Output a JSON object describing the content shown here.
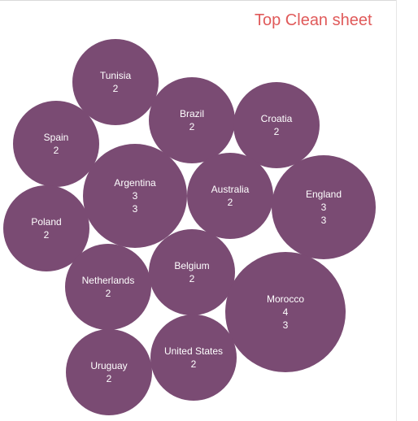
{
  "chart_data": {
    "type": "bubble",
    "title": "Top Clean sheet",
    "bubble_color": "#7a4b73",
    "title_color": "#e05a5a",
    "bubbles": [
      {
        "country": "Tunisia",
        "values": [
          "2"
        ]
      },
      {
        "country": "Brazil",
        "values": [
          "2"
        ]
      },
      {
        "country": "Croatia",
        "values": [
          "2"
        ]
      },
      {
        "country": "Spain",
        "values": [
          "2"
        ]
      },
      {
        "country": "Argentina",
        "values": [
          "3",
          "3"
        ]
      },
      {
        "country": "Australia",
        "values": [
          "2"
        ]
      },
      {
        "country": "England",
        "values": [
          "3",
          "3"
        ]
      },
      {
        "country": "Poland",
        "values": [
          "2"
        ]
      },
      {
        "country": "Netherlands",
        "values": [
          "2"
        ]
      },
      {
        "country": "Belgium",
        "values": [
          "2"
        ]
      },
      {
        "country": "Morocco",
        "values": [
          "4",
          "3"
        ]
      },
      {
        "country": "United States",
        "values": [
          "2"
        ]
      },
      {
        "country": "Uruguay",
        "values": [
          "2"
        ]
      }
    ]
  }
}
